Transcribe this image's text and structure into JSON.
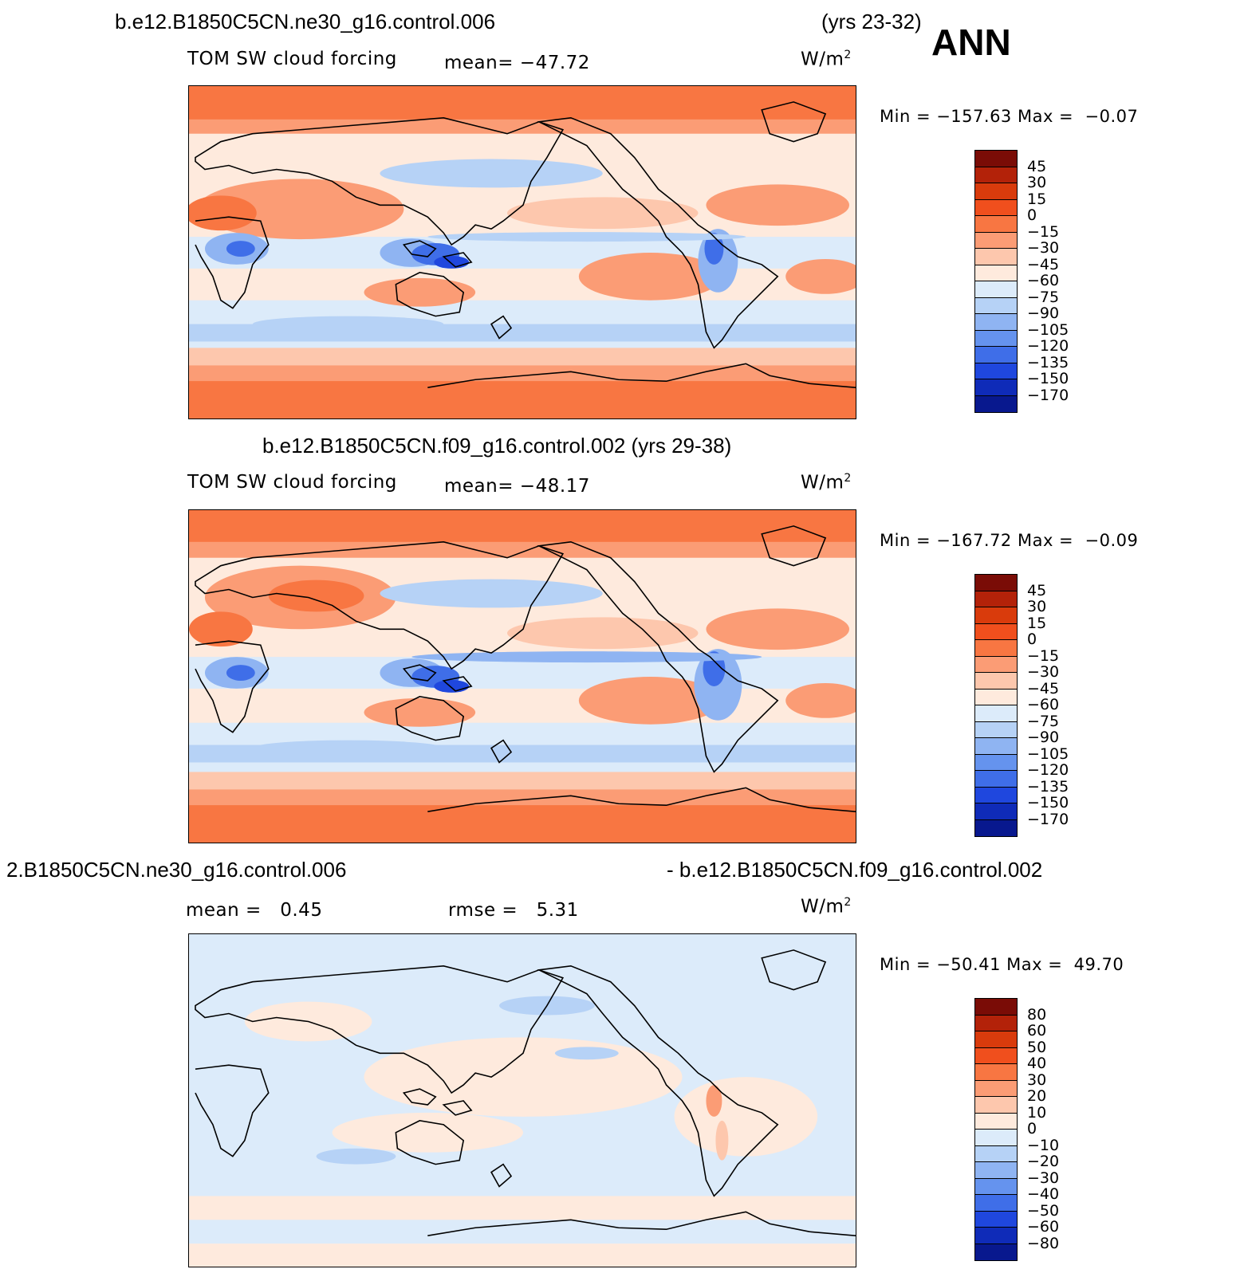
{
  "header": {
    "case1_title": "b.e12.B1850C5CN.ne30_g16.control.006",
    "case1_years": "(yrs 23-32)",
    "season": "ANN"
  },
  "panels": [
    {
      "variable": "TOM SW cloud forcing",
      "mean_label": "mean= −47.72",
      "units": "W/m",
      "units_exp": "2",
      "minmax": "Min = −157.63 Max =  −0.07",
      "colorbar_labels": [
        "45",
        "30",
        "15",
        "0",
        "−15",
        "−30",
        "−45",
        "−60",
        "−75",
        "−90",
        "−105",
        "−120",
        "−135",
        "−150",
        "−170"
      ]
    },
    {
      "title": "b.e12.B1850C5CN.f09_g16.control.002 (yrs 29-38)",
      "variable": "TOM SW cloud forcing",
      "mean_label": "mean= −48.17",
      "units": "W/m",
      "units_exp": "2",
      "minmax": "Min = −167.72 Max =  −0.09",
      "colorbar_labels": [
        "45",
        "30",
        "15",
        "0",
        "−15",
        "−30",
        "−45",
        "−60",
        "−75",
        "−90",
        "−105",
        "−120",
        "−135",
        "−150",
        "−170"
      ]
    },
    {
      "title_left": "2.B1850C5CN.ne30_g16.control.006",
      "title_right": "- b.e12.B1850C5CN.f09_g16.control.002",
      "mean_label": "mean =   0.45",
      "rmse_label": "rmse =   5.31",
      "units": "W/m",
      "units_exp": "2",
      "minmax": "Min = −50.41 Max =  49.70",
      "colorbar_labels": [
        "80",
        "60",
        "50",
        "40",
        "30",
        "20",
        "10",
        "0",
        "−10",
        "−20",
        "−30",
        "−40",
        "−50",
        "−60",
        "−80"
      ]
    }
  ],
  "colors": {
    "palette": [
      "#7a0c06",
      "#b32209",
      "#d93b0c",
      "#f04f1d",
      "#f87642",
      "#fb9c75",
      "#fdc7ad",
      "#feeadd",
      "#dcebfa",
      "#b6d2f6",
      "#8fb4f2",
      "#6593ee",
      "#3f6ee8",
      "#1f47de",
      "#0f2bb8",
      "#08188e"
    ],
    "land_line": "#000000"
  }
}
